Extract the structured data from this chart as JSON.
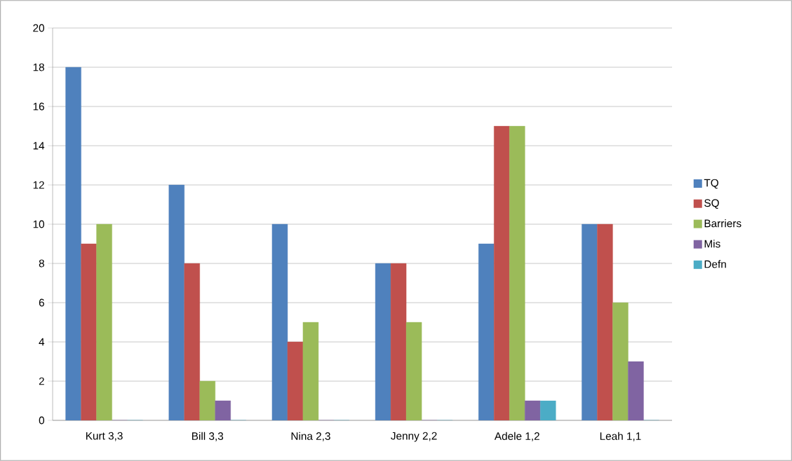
{
  "chart_data": {
    "type": "bar",
    "categories": [
      "Kurt  3,3",
      "Bill  3,3",
      "Nina  2,3",
      "Jenny  2,2",
      "Adele  1,2",
      "Leah  1,1"
    ],
    "series": [
      {
        "name": "TQ",
        "color": "#4f81bd",
        "values": [
          18,
          12,
          10,
          8,
          9,
          10
        ]
      },
      {
        "name": "SQ",
        "color": "#c0504d",
        "values": [
          9,
          8,
          4,
          8,
          15,
          10
        ]
      },
      {
        "name": "Barriers",
        "color": "#9bbb59",
        "values": [
          10,
          2,
          5,
          5,
          15,
          6
        ]
      },
      {
        "name": "Mis",
        "color": "#8064a2",
        "values": [
          0,
          1,
          0,
          0,
          1,
          3
        ]
      },
      {
        "name": "Defn",
        "color": "#4bacc6",
        "values": [
          0,
          0,
          0,
          0,
          1,
          0
        ]
      }
    ],
    "ylim": [
      0,
      20
    ],
    "yticks": [
      0,
      2,
      4,
      6,
      8,
      10,
      12,
      14,
      16,
      18,
      20
    ],
    "grid": "y",
    "legend": "right"
  }
}
